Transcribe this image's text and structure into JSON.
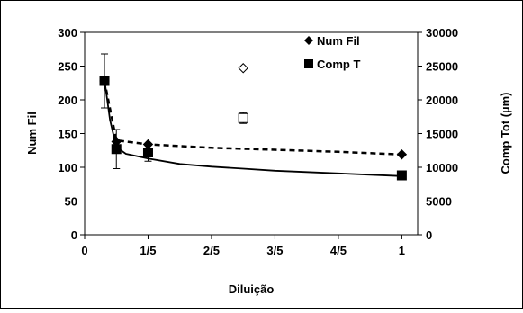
{
  "chart_data": {
    "type": "scatter",
    "xlabel": "Diluição",
    "ylabel_left": "Num Fil",
    "ylabel_right": "Comp Tot (µm)",
    "x_ticks": [
      {
        "value": 0,
        "label": "0"
      },
      {
        "value": 0.2,
        "label": "1/5"
      },
      {
        "value": 0.4,
        "label": "2/5"
      },
      {
        "value": 0.6,
        "label": "3/5"
      },
      {
        "value": 0.8,
        "label": "4/5"
      },
      {
        "value": 1.0,
        "label": "1"
      }
    ],
    "xlim": [
      0,
      1.05
    ],
    "ylim_left": [
      0,
      300
    ],
    "ylim_right": [
      0,
      30000
    ],
    "y_left_ticks": [
      "0",
      "50",
      "100",
      "150",
      "200",
      "250",
      "300"
    ],
    "y_right_ticks": [
      "0",
      "5000",
      "10000",
      "15000",
      "20000",
      "25000",
      "30000"
    ],
    "grid": false,
    "legend_position": "top-right",
    "series": [
      {
        "name": "Num Fil",
        "axis": "left",
        "marker": "diamond",
        "color": "#000000",
        "points": [
          {
            "x": 0.0625,
            "y": 228
          },
          {
            "x": 0.1,
            "y": 138
          },
          {
            "x": 0.2,
            "y": 134
          },
          {
            "x": 1.0,
            "y": 119
          }
        ],
        "fit": "dashed",
        "fit_curve": [
          [
            0.0625,
            228
          ],
          [
            0.1,
            140
          ],
          [
            0.2,
            134
          ],
          [
            0.4,
            129
          ],
          [
            0.6,
            126
          ],
          [
            0.8,
            123
          ],
          [
            1.0,
            119
          ]
        ]
      },
      {
        "name": "Comp T",
        "axis": "right",
        "marker": "square",
        "color": "#000000",
        "points": [
          {
            "x": 0.0625,
            "y": 22800,
            "err": 4000
          },
          {
            "x": 0.1,
            "y": 12700,
            "err": 2900
          },
          {
            "x": 0.2,
            "y": 12200,
            "err": 1300
          },
          {
            "x": 1.0,
            "y": 8800,
            "err": 300
          }
        ],
        "fit": "solid",
        "fit_curve": [
          [
            0.0625,
            23000
          ],
          [
            0.08,
            17000
          ],
          [
            0.1,
            13000
          ],
          [
            0.13,
            12000
          ],
          [
            0.2,
            11300
          ],
          [
            0.3,
            10500
          ],
          [
            0.4,
            10100
          ],
          [
            0.5,
            9800
          ],
          [
            0.6,
            9500
          ],
          [
            0.7,
            9300
          ],
          [
            0.8,
            9100
          ],
          [
            0.9,
            8900
          ],
          [
            1.0,
            8700
          ]
        ]
      },
      {
        "name": "",
        "axis": "left",
        "marker": "diamond-open",
        "color": "#000000",
        "points": [
          {
            "x": 0.5,
            "y": 247
          }
        ]
      },
      {
        "name": "",
        "axis": "right",
        "marker": "square-open",
        "color": "#000000",
        "points": [
          {
            "x": 0.5,
            "y": 17300,
            "err": 800
          }
        ]
      }
    ]
  }
}
